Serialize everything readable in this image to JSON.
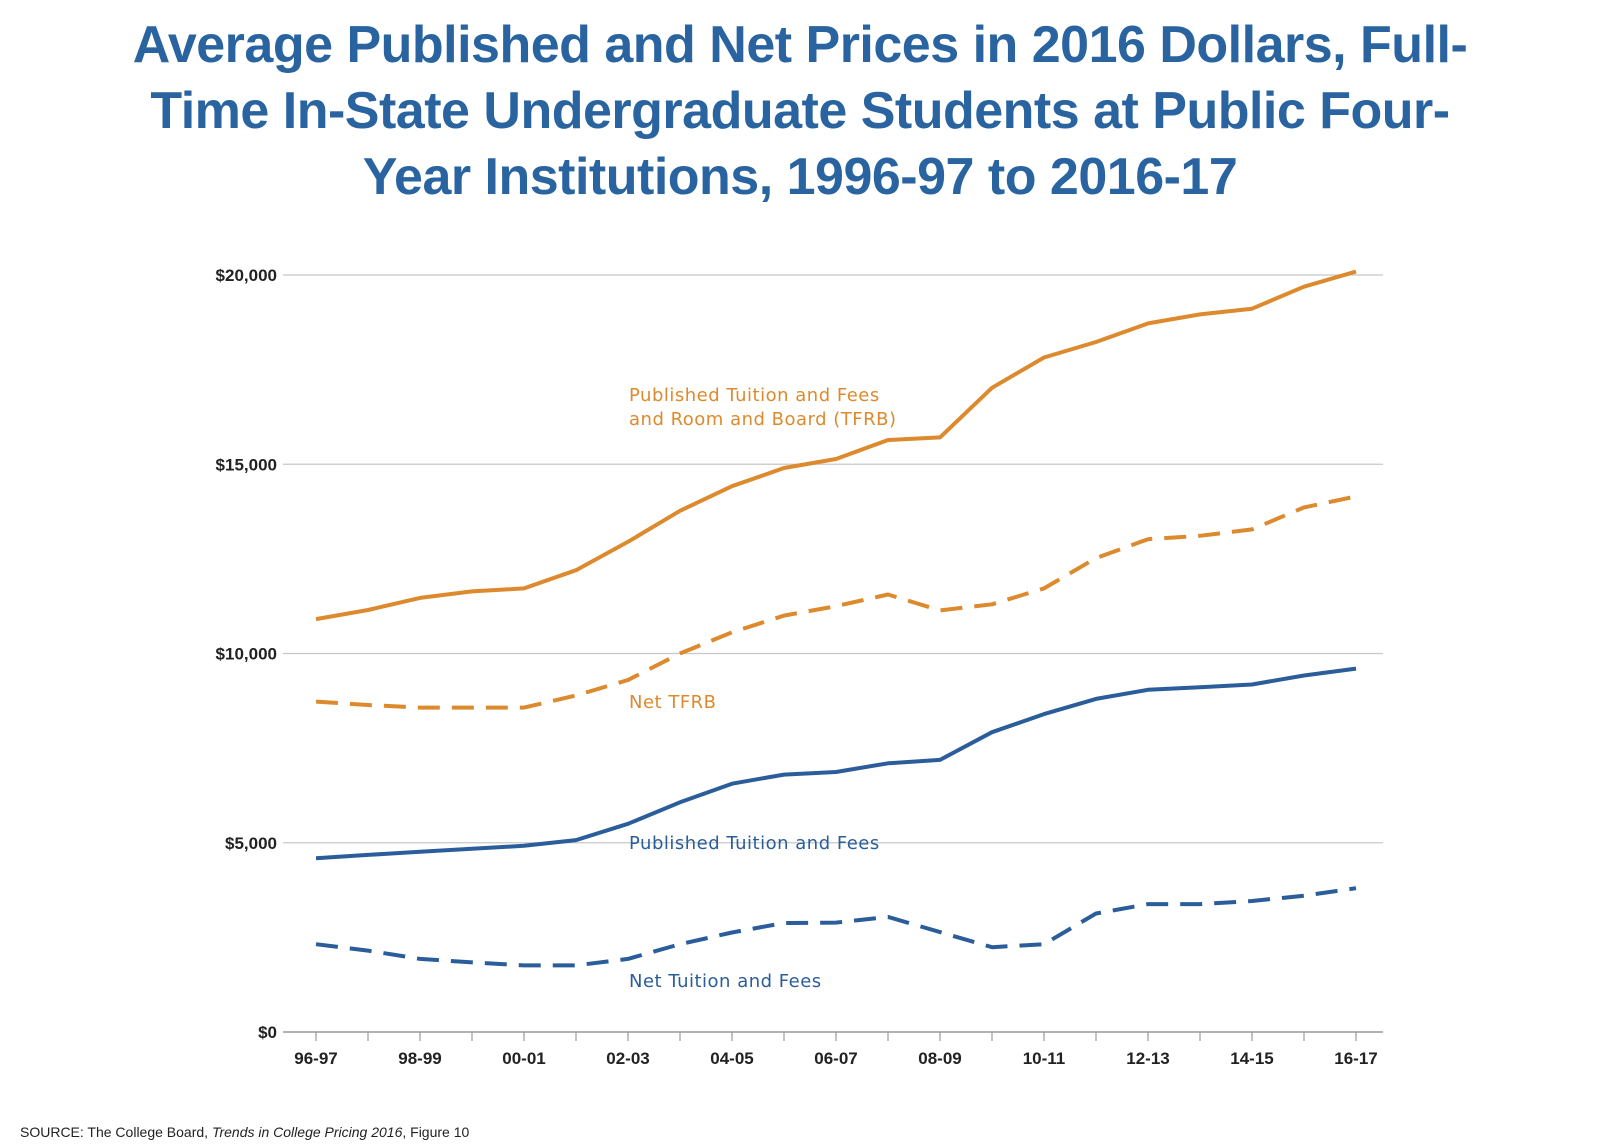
{
  "title_lines": [
    "Average Published and Net Prices in 2016 Dollars, Full-",
    "Time In-State Undergraduate Students at Public Four-",
    "Year Institutions, 1996-97 to 2016-17"
  ],
  "source": {
    "prefix": "SOURCE: The College Board, ",
    "italic": "Trends in College Pricing 2016",
    "suffix": ", Figure 10"
  },
  "chart_data": {
    "type": "line",
    "x": [
      "96-97",
      "97-98",
      "98-99",
      "99-00",
      "00-01",
      "01-02",
      "02-03",
      "03-04",
      "04-05",
      "05-06",
      "06-07",
      "07-08",
      "08-09",
      "09-10",
      "10-11",
      "11-12",
      "12-13",
      "13-14",
      "14-15",
      "15-16",
      "16-17"
    ],
    "x_tick_labels": [
      "96-97",
      "98-99",
      "00-01",
      "02-03",
      "04-05",
      "06-07",
      "08-09",
      "10-11",
      "12-13",
      "14-15",
      "16-17"
    ],
    "ylim": [
      0,
      20000
    ],
    "y_ticks": [
      0,
      5000,
      10000,
      15000,
      20000
    ],
    "y_tick_labels": [
      "$0",
      "$5,000",
      "$10,000",
      "$15,000",
      "$20,000"
    ],
    "grid": "horizontal",
    "series": [
      {
        "name": "Published Tuition and Fees\nand Room and Board (TFRB)",
        "label_lines": [
          "Published Tuition and Fees",
          "and Room and Board (TFRB)"
        ],
        "color": "#dd8a2e",
        "dash": "solid",
        "values": [
          10910,
          11150,
          11470,
          11640,
          11720,
          12200,
          12950,
          13770,
          14420,
          14900,
          15140,
          15640,
          15710,
          17020,
          17820,
          18230,
          18720,
          18960,
          19110,
          19690,
          20090
        ]
      },
      {
        "name": "Net TFRB",
        "label_lines": [
          "Net TFRB"
        ],
        "color": "#dd8a2e",
        "dash": "dashed",
        "values": [
          8730,
          8640,
          8570,
          8570,
          8570,
          8890,
          9300,
          10000,
          10560,
          11000,
          11250,
          11560,
          11140,
          11300,
          11720,
          12520,
          13020,
          13110,
          13280,
          13860,
          14150
        ]
      },
      {
        "name": "Published Tuition and Fees",
        "label_lines": [
          "Published Tuition and Fees"
        ],
        "color": "#2a5d9a",
        "dash": "solid",
        "values": [
          4590,
          4680,
          4760,
          4840,
          4920,
          5070,
          5500,
          6070,
          6560,
          6800,
          6870,
          7100,
          7190,
          7920,
          8400,
          8800,
          9040,
          9110,
          9180,
          9420,
          9600
        ]
      },
      {
        "name": "Net Tuition and Fees",
        "label_lines": [
          "Net Tuition and Fees"
        ],
        "color": "#2a5d9a",
        "dash": "dashed",
        "values": [
          2320,
          2150,
          1930,
          1840,
          1760,
          1760,
          1930,
          2320,
          2630,
          2880,
          2890,
          3040,
          2640,
          2240,
          2320,
          3130,
          3380,
          3380,
          3460,
          3600,
          3800
        ]
      }
    ]
  }
}
